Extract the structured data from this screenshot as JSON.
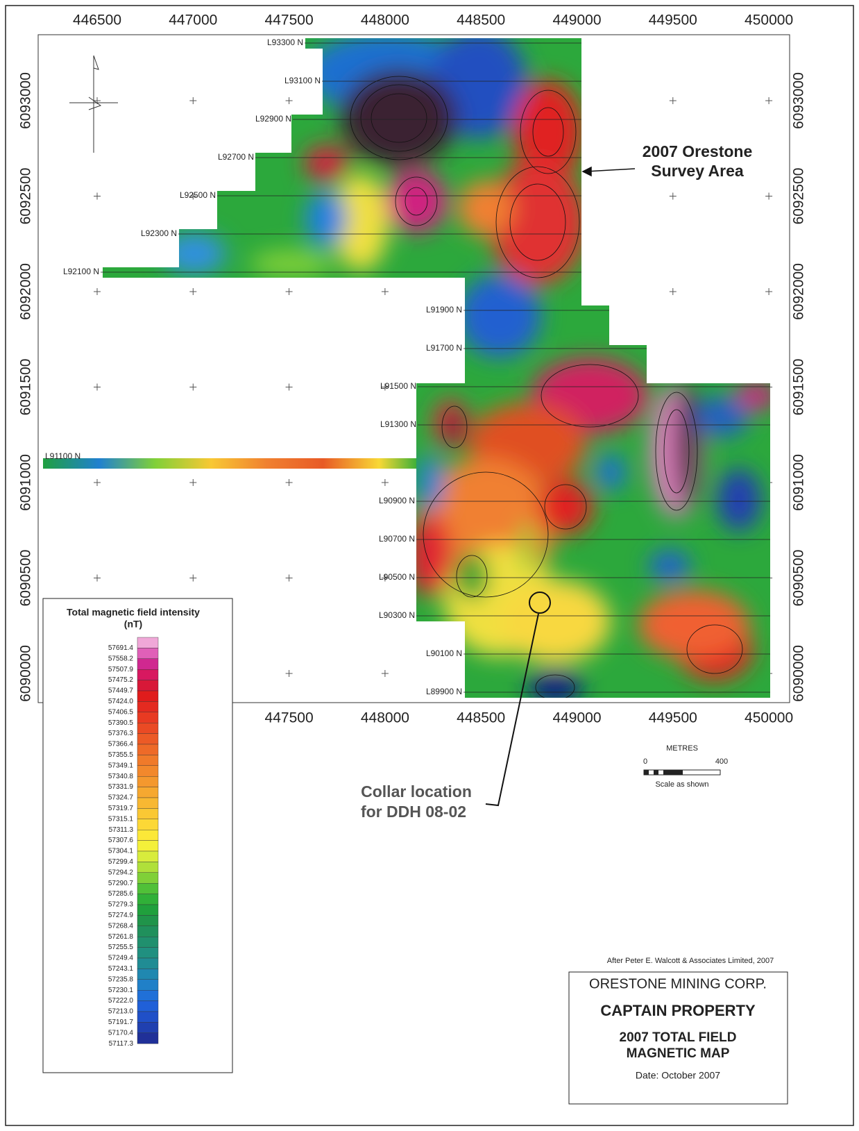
{
  "map": {
    "xticks_top": [
      446500,
      447000,
      447500,
      448000,
      448500,
      449000,
      449500,
      450000
    ],
    "xticks_bottom": [
      447500,
      448000,
      448500,
      449000,
      449500,
      450000
    ],
    "yticks": [
      6093000,
      6092500,
      6092000,
      6091500,
      6091000,
      6090500,
      6090000
    ],
    "lines": [
      "L93300 N",
      "L93100 N",
      "L92900 N",
      "L92700 N",
      "L92500 N",
      "L92300 N",
      "L92100 N",
      "L91900 N",
      "L91700 N",
      "L91500 N",
      "L91300 N",
      "L91100 N",
      "L90900 N",
      "L90700 N",
      "L90500 N",
      "L90300 N",
      "L90100 N",
      "L89900 N"
    ],
    "survey_label": [
      "2007 Orestone",
      "Survey Area"
    ],
    "collar_label": [
      "Collar location",
      "for DDH 08-02"
    ]
  },
  "legend": {
    "title": "Total magnetic field intensity",
    "unit": "(nT)",
    "levels": [
      57691.4,
      57558.2,
      57507.9,
      57475.2,
      57449.7,
      {
        "value": 57424,
        "label": "57424.0"
      },
      57406.5,
      57390.5,
      57376.3,
      57366.4,
      57355.5,
      57349.1,
      57340.8,
      57331.9,
      57324.7,
      57319.7,
      57315.1,
      57311.3,
      57307.6,
      57304.1,
      57299.4,
      57294.2,
      57290.7,
      57285.6,
      57279.3,
      57274.9,
      57268.4,
      57261.8,
      57255.5,
      57249.4,
      57243.1,
      57235.8,
      57230.1,
      {
        "value": 57222,
        "label": "57222.0"
      },
      {
        "value": 57213,
        "label": "57213.0"
      },
      57191.7,
      57170.4,
      57117.3
    ],
    "colors": [
      "#f0a8d8",
      "#e060b8",
      "#d02890",
      "#d81860",
      "#d81838",
      "#e01c1c",
      "#e42a20",
      "#e83a22",
      "#ea4a24",
      "#ec5a26",
      "#ee6a28",
      "#f07a2a",
      "#f2882c",
      "#f4982e",
      "#f6a830",
      "#f8b832",
      "#fac834",
      "#fcd836",
      "#fce838",
      "#f4f03a",
      "#d8ec3c",
      "#b0e03a",
      "#80d038",
      "#50c038",
      "#30b038",
      "#20a03c",
      "#20944a",
      "#20905c",
      "#20906e",
      "#209080",
      "#208c94",
      "#2088b0",
      "#2080c8",
      "#2070d8",
      "#2060d8",
      "#2050c8",
      "#2040b0",
      "#203098"
    ]
  },
  "scale": {
    "title": "METRES",
    "ticks": [
      0,
      400
    ],
    "note": "Scale as shown"
  },
  "credit": "After Peter E. Walcott & Associates Limited, 2007",
  "title_block": {
    "company": "ORESTONE MINING CORP.",
    "property": "CAPTAIN PROPERTY",
    "title": [
      "2007 TOTAL FIELD",
      "MAGNETIC MAP"
    ],
    "date": "Date:  October 2007"
  }
}
